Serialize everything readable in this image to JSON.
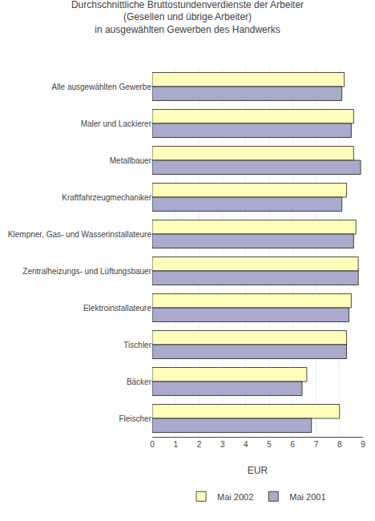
{
  "chart_data": {
    "type": "bar",
    "orientation": "horizontal",
    "title": "Durchschnittliche Bruttostundenverdienste der Arbeiter\n(Gesellen und übrige Arbeiter)\nin ausgewählten Gewerben des Handwerks",
    "categories": [
      "Alle ausgewählten Gewerbe",
      "Maler und Lackierer",
      "Metallbauer",
      "Kraftfahrzeugmechaniker",
      "Klempner, Gas- und Wasserinstallateure",
      "Zentralheizungs- und Lüftungsbauer",
      "Elektroinstallateure",
      "Tischler",
      "Bäcker",
      "Fleischer"
    ],
    "series": [
      {
        "name": "Mai 2002",
        "color": "#FFFFBB",
        "values": [
          8.2,
          8.6,
          8.6,
          8.3,
          8.7,
          8.8,
          8.5,
          8.3,
          6.6,
          8.0
        ]
      },
      {
        "name": "Mai 2001",
        "color": "#AAAACC",
        "values": [
          8.1,
          8.5,
          8.9,
          8.1,
          8.6,
          8.8,
          8.4,
          8.3,
          6.4,
          6.8
        ]
      }
    ],
    "xlabel": "EUR",
    "xlim": [
      0,
      9
    ],
    "xticks": [
      0,
      1,
      2,
      3,
      4,
      5,
      6,
      7,
      8,
      9
    ],
    "grid": true,
    "legend": "bottom"
  }
}
